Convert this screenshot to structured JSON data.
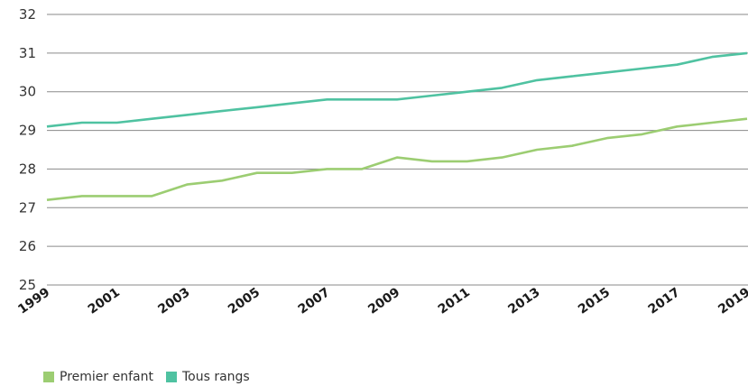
{
  "chart_data": {
    "type": "line",
    "x": [
      1999,
      2000,
      2001,
      2002,
      2003,
      2004,
      2005,
      2006,
      2007,
      2008,
      2009,
      2010,
      2011,
      2012,
      2013,
      2014,
      2015,
      2016,
      2017,
      2018,
      2019
    ],
    "x_tick_labels": [
      "1999",
      "2001",
      "2003",
      "2005",
      "2007",
      "2009",
      "2011",
      "2013",
      "2015",
      "2017",
      "2019"
    ],
    "y_ticks": [
      25,
      26,
      27,
      28,
      29,
      30,
      31,
      32
    ],
    "ylim": [
      25,
      32
    ],
    "grid": "horizontal",
    "legend_position": "bottom-left",
    "series": [
      {
        "name": "Premier enfant",
        "color": "#9ccd72",
        "values": [
          27.2,
          27.3,
          27.3,
          27.3,
          27.6,
          27.7,
          27.9,
          27.9,
          28.0,
          28.0,
          28.3,
          28.2,
          28.2,
          28.3,
          28.5,
          28.6,
          28.8,
          28.9,
          29.1,
          29.2,
          29.3
        ]
      },
      {
        "name": "Tous rangs",
        "color": "#4fc2a1",
        "values": [
          29.1,
          29.2,
          29.2,
          29.3,
          29.4,
          29.5,
          29.6,
          29.7,
          29.8,
          29.8,
          29.8,
          29.9,
          30.0,
          30.1,
          30.3,
          30.4,
          30.5,
          30.6,
          30.7,
          30.9,
          31.0
        ]
      }
    ]
  }
}
